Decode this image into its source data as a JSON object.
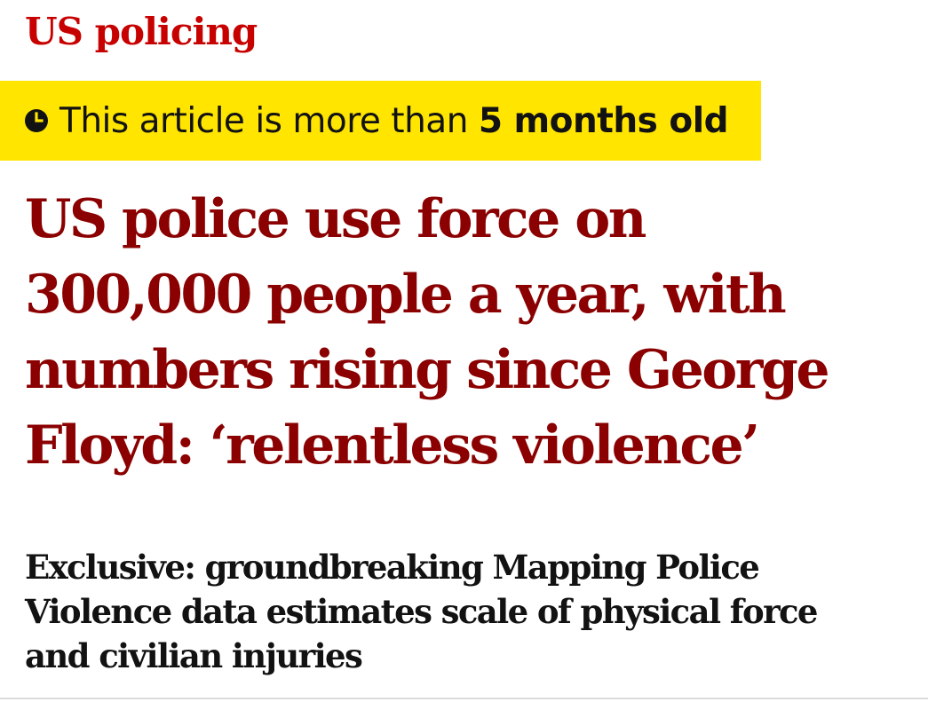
{
  "section": {
    "label": "US policing"
  },
  "age_warning": {
    "icon": "clock-icon",
    "prefix": "This article is more than ",
    "age": "5 months old"
  },
  "headline": {
    "lines": [
      "US police use force on",
      "300,000 people a year, with",
      "numbers rising since George",
      "Floyd: ‘relentless violence’"
    ]
  },
  "standfirst": {
    "lines": [
      "Exclusive: groundbreaking Mapping Police",
      "Violence data estimates scale of physical force",
      "and civilian injuries"
    ]
  },
  "colors": {
    "section": "#c70000",
    "headline": "#8b0000",
    "warning_background": "#ffe500",
    "text": "#121212"
  }
}
